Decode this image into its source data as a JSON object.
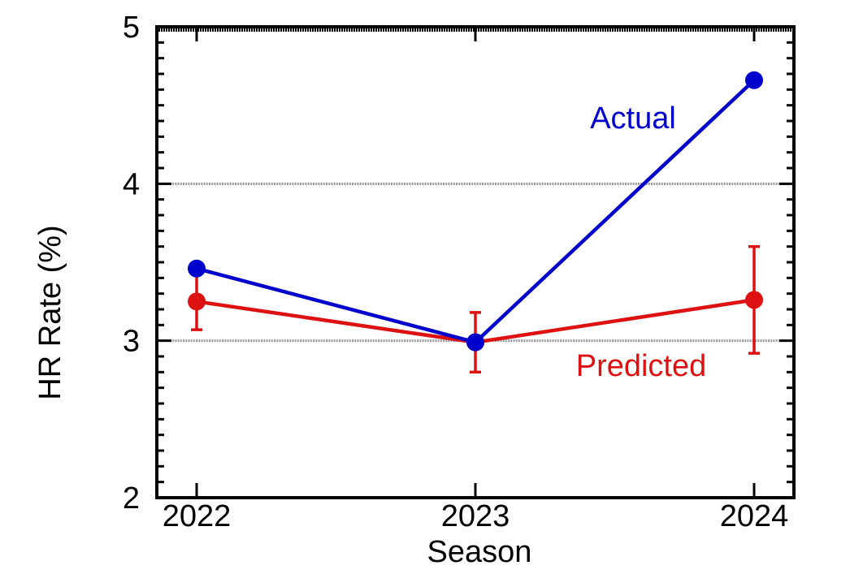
{
  "chart_data": {
    "type": "line",
    "title": "",
    "xlabel": "Season",
    "ylabel": "HR Rate (%)",
    "categories": [
      "2022",
      "2023",
      "2024"
    ],
    "ylim": [
      2,
      5
    ],
    "yticks": [
      "2",
      "3",
      "4",
      "5"
    ],
    "grid": "horizontal dotted at 3 and 4",
    "series": [
      {
        "name": "Actual",
        "color": "#0000cc",
        "values": [
          3.46,
          2.99,
          4.66
        ]
      },
      {
        "name": "Predicted",
        "color": "#dd1111",
        "values": [
          3.25,
          2.99,
          3.26
        ],
        "error_low": [
          3.07,
          2.8,
          2.92
        ],
        "error_high": [
          3.44,
          3.18,
          3.6
        ]
      }
    ]
  }
}
